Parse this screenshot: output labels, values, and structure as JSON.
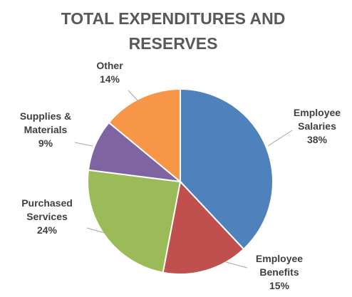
{
  "chart_data": {
    "type": "pie",
    "title_lines": [
      "TOTAL EXPENDITURES AND",
      "RESERVES"
    ],
    "categories": [
      "Employee Salaries",
      "Employee Benefits",
      "Purchased Services",
      "Supplies & Materials",
      "Other"
    ],
    "label_lines": [
      [
        "Employee",
        "Salaries"
      ],
      [
        "Employee",
        "Benefits"
      ],
      [
        "Purchased",
        "Services"
      ],
      [
        "Supplies &",
        "Materials"
      ],
      [
        "Other"
      ]
    ],
    "values": [
      38,
      15,
      24,
      9,
      14
    ],
    "value_labels": [
      "38%",
      "15%",
      "24%",
      "9%",
      "14%"
    ],
    "colors": [
      "#4f81bd",
      "#c0504d",
      "#9bbb59",
      "#8064a2",
      "#f79646"
    ],
    "start_angle": "12 o'clock",
    "direction": "clockwise",
    "legend": "none",
    "grid": false
  }
}
